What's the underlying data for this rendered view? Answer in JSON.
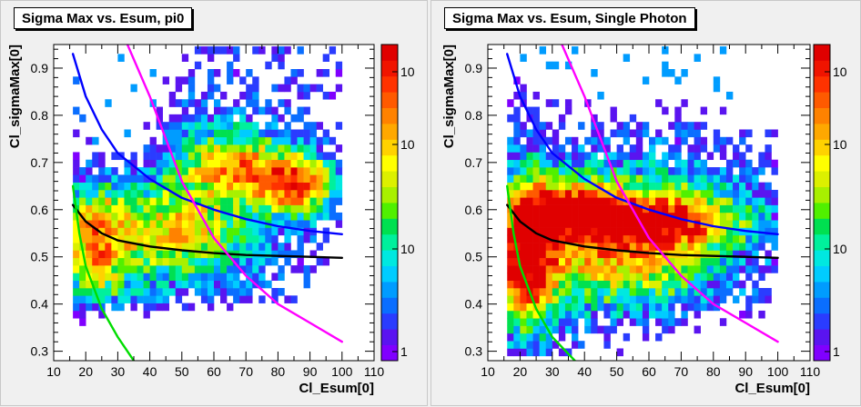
{
  "chart_data": [
    {
      "type": "heatmap",
      "title": "Sigma Max vs. Esum, pi0",
      "xlabel": "Cl_Esum[0]",
      "ylabel": "Cl_sigmaMax[0]",
      "xlim": [
        10,
        110
      ],
      "ylim": [
        0.28,
        0.95
      ],
      "x_ticks": [
        10,
        20,
        30,
        40,
        50,
        60,
        70,
        80,
        90,
        100,
        110
      ],
      "y_ticks": [
        0.3,
        0.4,
        0.5,
        0.6,
        0.7,
        0.8,
        0.9
      ],
      "z_scale": "log",
      "z_tick_labels": [
        "10",
        "10",
        "10",
        "1"
      ],
      "populated_region": {
        "x": [
          16,
          100
        ],
        "y": [
          0.29,
          0.93
        ]
      },
      "hot_spots": [
        {
          "x": 87,
          "y": 0.655,
          "level": "high"
        },
        {
          "x": 70,
          "y": 0.7,
          "level": "high"
        },
        {
          "x": 22,
          "y": 0.52,
          "level": "mid"
        }
      ],
      "curves": [
        {
          "color": "#0000ff",
          "points": [
            [
              16,
              0.93
            ],
            [
              20,
              0.84
            ],
            [
              25,
              0.77
            ],
            [
              30,
              0.72
            ],
            [
              40,
              0.665
            ],
            [
              50,
              0.625
            ],
            [
              60,
              0.6
            ],
            [
              70,
              0.58
            ],
            [
              80,
              0.565
            ],
            [
              90,
              0.555
            ],
            [
              100,
              0.548
            ]
          ]
        },
        {
          "color": "#000000",
          "points": [
            [
              16,
              0.61
            ],
            [
              20,
              0.575
            ],
            [
              25,
              0.55
            ],
            [
              30,
              0.535
            ],
            [
              40,
              0.522
            ],
            [
              50,
              0.514
            ],
            [
              60,
              0.508
            ],
            [
              70,
              0.504
            ],
            [
              80,
              0.502
            ],
            [
              90,
              0.5
            ],
            [
              100,
              0.498
            ]
          ]
        },
        {
          "color": "#ff00ff",
          "points": [
            [
              33,
              0.95
            ],
            [
              40,
              0.84
            ],
            [
              50,
              0.66
            ],
            [
              60,
              0.54
            ],
            [
              70,
              0.46
            ],
            [
              80,
              0.4
            ],
            [
              90,
              0.36
            ],
            [
              100,
              0.32
            ]
          ]
        },
        {
          "color": "#00dd00",
          "points": [
            [
              16,
              0.65
            ],
            [
              18,
              0.55
            ],
            [
              20,
              0.48
            ],
            [
              25,
              0.39
            ],
            [
              30,
              0.33
            ],
            [
              35,
              0.28
            ]
          ]
        }
      ]
    },
    {
      "type": "heatmap",
      "title": "Sigma Max vs. Esum, Single Photon",
      "xlabel": "Cl_Esum[0]",
      "ylabel": "Cl_sigmaMax[0]",
      "xlim": [
        10,
        110
      ],
      "ylim": [
        0.28,
        0.95
      ],
      "x_ticks": [
        10,
        20,
        30,
        40,
        50,
        60,
        70,
        80,
        90,
        100,
        110
      ],
      "y_ticks": [
        0.3,
        0.4,
        0.5,
        0.6,
        0.7,
        0.8,
        0.9
      ],
      "z_scale": "log",
      "z_tick_labels": [
        "10",
        "10",
        "10",
        "1"
      ],
      "populated_region": {
        "x": [
          16,
          100
        ],
        "y": [
          0.29,
          0.93
        ]
      },
      "hot_spots": [
        {
          "x": 20,
          "y": 0.5,
          "level": "high"
        },
        {
          "x": 40,
          "y": 0.6,
          "level": "high"
        },
        {
          "x": 75,
          "y": 0.58,
          "level": "mid"
        }
      ],
      "curves": [
        {
          "color": "#0000ff",
          "points": [
            [
              16,
              0.93
            ],
            [
              20,
              0.84
            ],
            [
              25,
              0.77
            ],
            [
              30,
              0.72
            ],
            [
              40,
              0.665
            ],
            [
              50,
              0.625
            ],
            [
              60,
              0.6
            ],
            [
              70,
              0.58
            ],
            [
              80,
              0.565
            ],
            [
              90,
              0.555
            ],
            [
              100,
              0.548
            ]
          ]
        },
        {
          "color": "#000000",
          "points": [
            [
              16,
              0.61
            ],
            [
              20,
              0.575
            ],
            [
              25,
              0.55
            ],
            [
              30,
              0.535
            ],
            [
              40,
              0.522
            ],
            [
              50,
              0.514
            ],
            [
              60,
              0.508
            ],
            [
              70,
              0.504
            ],
            [
              80,
              0.502
            ],
            [
              90,
              0.5
            ],
            [
              100,
              0.498
            ]
          ]
        },
        {
          "color": "#ff00ff",
          "points": [
            [
              33,
              0.95
            ],
            [
              40,
              0.84
            ],
            [
              50,
              0.66
            ],
            [
              60,
              0.54
            ],
            [
              70,
              0.46
            ],
            [
              80,
              0.4
            ],
            [
              90,
              0.36
            ],
            [
              100,
              0.32
            ]
          ]
        },
        {
          "color": "#00dd00",
          "points": [
            [
              16,
              0.65
            ],
            [
              18,
              0.55
            ],
            [
              20,
              0.48
            ],
            [
              25,
              0.39
            ],
            [
              30,
              0.33
            ],
            [
              37,
              0.28
            ]
          ]
        }
      ]
    }
  ]
}
